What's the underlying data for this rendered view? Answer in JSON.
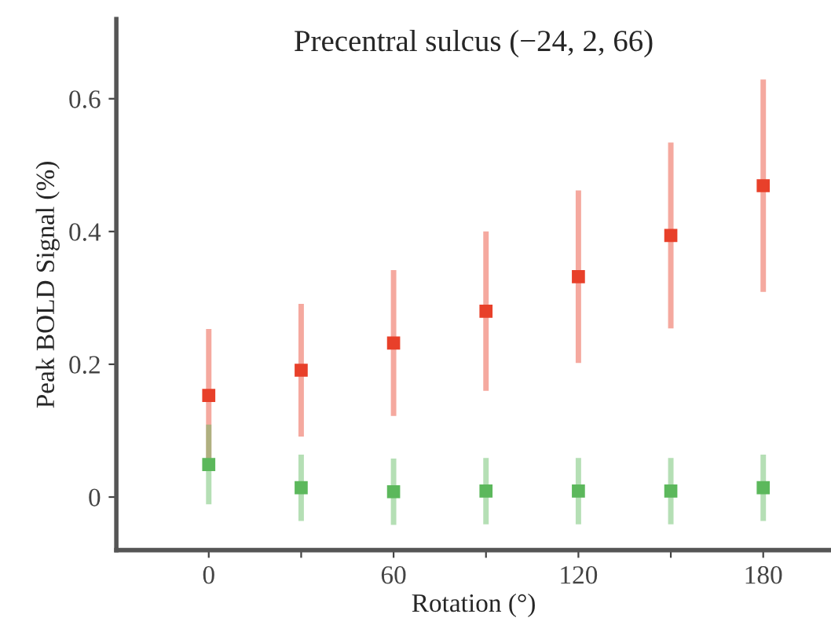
{
  "chart_data": {
    "type": "scatter",
    "title": "Precentral sulcus (−24, 2, 66)",
    "xlabel": "Rotation (°)",
    "ylabel": "Peak BOLD Signal (%)",
    "x": [
      0,
      30,
      60,
      90,
      120,
      150,
      180
    ],
    "series": [
      {
        "color": "#e8402a",
        "values": [
          0.153,
          0.191,
          0.232,
          0.28,
          0.332,
          0.394,
          0.469
        ],
        "errors": [
          0.1,
          0.1,
          0.11,
          0.12,
          0.13,
          0.14,
          0.16
        ]
      },
      {
        "color": "#5cb85c",
        "values": [
          0.049,
          0.014,
          0.008,
          0.009,
          0.009,
          0.009,
          0.014
        ],
        "errors": [
          0.06,
          0.05,
          0.05,
          0.05,
          0.05,
          0.05,
          0.05
        ]
      }
    ],
    "xlim": [
      -30,
      202
    ],
    "ylim": [
      -0.08,
      0.72
    ],
    "xticks": [
      0,
      {
        "value": 30,
        "label": null
      },
      60,
      {
        "value": 90,
        "label": null
      },
      120,
      {
        "value": 150,
        "label": null
      },
      180
    ],
    "yticks": [
      0,
      0.2,
      0.4,
      0.6
    ],
    "marker": "square",
    "grid": false,
    "legend": false
  }
}
